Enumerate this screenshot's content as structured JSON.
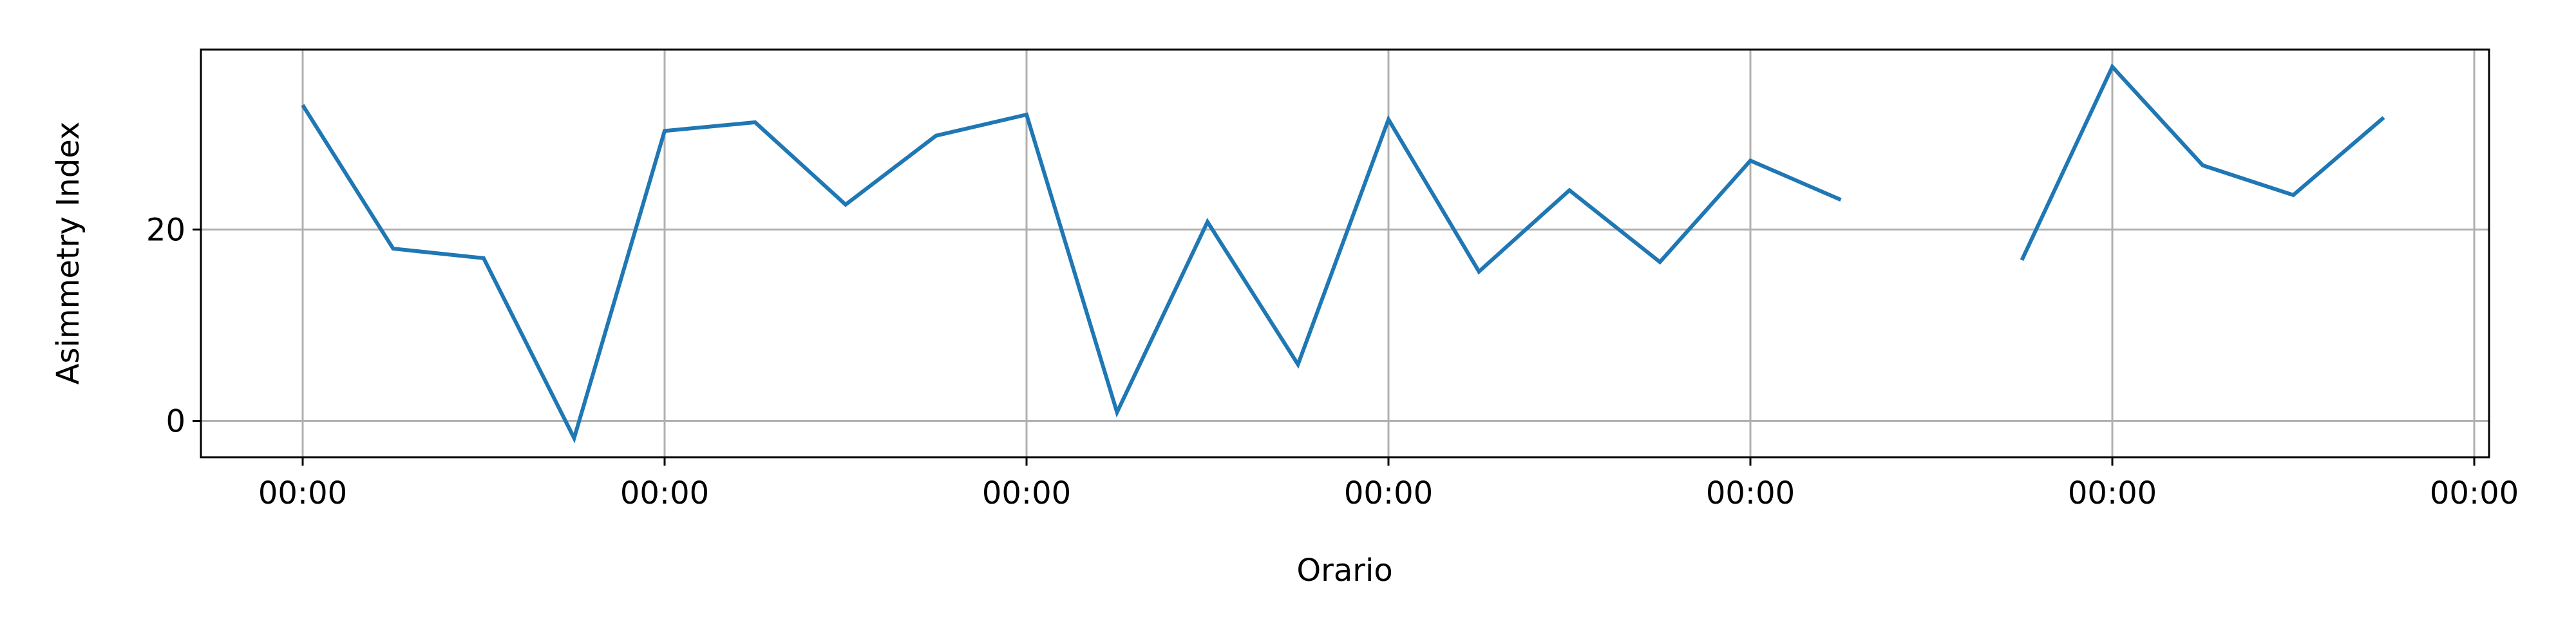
{
  "chart_data": {
    "type": "line",
    "title": "",
    "xlabel": "Orario",
    "ylabel": "Asimmetry Index",
    "x_tick_labels": [
      "00:00",
      "00:00",
      "00:00",
      "00:00",
      "00:00",
      "00:00",
      "00:00"
    ],
    "y_ticks": [
      0,
      20
    ],
    "ylim": [
      -3.8,
      38.8
    ],
    "grid": true,
    "legend": "none",
    "line_color": "#1f77b4",
    "grid_color": "#b0b0b0",
    "series": [
      {
        "values": [
          33.0,
          18.0,
          17.0,
          -1.8,
          30.3,
          31.2,
          22.6,
          29.8,
          32.0,
          0.9,
          20.8,
          5.9,
          31.5,
          15.6,
          24.1,
          16.6,
          27.2,
          23.1,
          null,
          16.8,
          37.0,
          26.7,
          23.6,
          31.7
        ]
      }
    ]
  }
}
